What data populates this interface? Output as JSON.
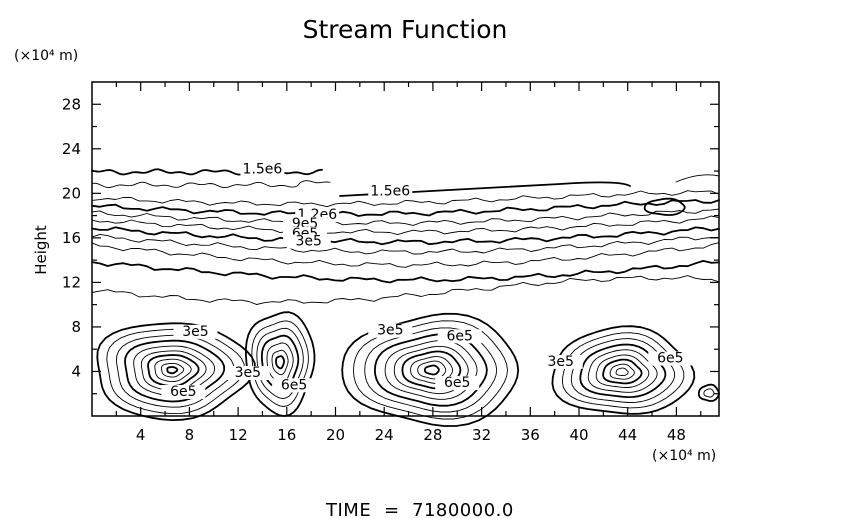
{
  "chart_data": {
    "type": "contour",
    "title": "Stream Function",
    "ylabel": "Height",
    "x_unit": "(×10⁴ m)",
    "y_unit": "(×10⁴ m)",
    "xlim": [
      0,
      51.5
    ],
    "ylim": [
      0,
      30
    ],
    "x_ticks": [
      4,
      8,
      12,
      16,
      20,
      24,
      28,
      32,
      36,
      40,
      44,
      48
    ],
    "y_ticks": [
      4,
      8,
      12,
      16,
      20,
      24,
      28
    ],
    "contour_labels": [
      {
        "text": "1.5e6",
        "x": 14,
        "y": 21.8
      },
      {
        "text": "1.5e6",
        "x": 24.5,
        "y": 19.8
      },
      {
        "text": "1.2e6",
        "x": 18.5,
        "y": 17.7
      },
      {
        "text": "9e5",
        "x": 17.5,
        "y": 16.9
      },
      {
        "text": "6e5",
        "x": 17.5,
        "y": 16.0
      },
      {
        "text": "3e5",
        "x": 17.8,
        "y": 15.3
      },
      {
        "text": "3e5",
        "x": 8.5,
        "y": 7.2
      },
      {
        "text": "6e5",
        "x": 7.5,
        "y": 1.8
      },
      {
        "text": "3e5",
        "x": 12.8,
        "y": 3.5
      },
      {
        "text": "6e5",
        "x": 16.6,
        "y": 2.4
      },
      {
        "text": "3e5",
        "x": 24.5,
        "y": 7.3
      },
      {
        "text": "6e5",
        "x": 30.2,
        "y": 6.8
      },
      {
        "text": "6e5",
        "x": 30.0,
        "y": 2.6
      },
      {
        "text": "3e5",
        "x": 38.5,
        "y": 4.5
      },
      {
        "text": "6e5",
        "x": 47.5,
        "y": 4.8
      }
    ],
    "time_label": "TIME",
    "time_value": "7180000.0"
  }
}
